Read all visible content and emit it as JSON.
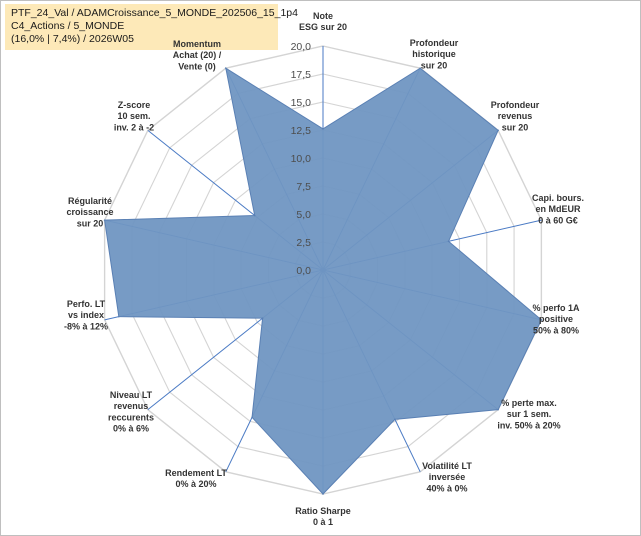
{
  "header": {
    "line1": "PTF_24_Val / ADAMCroissance_5_MONDE_202506_15_1p4",
    "line2": "C4_Actions / 5_MONDE",
    "line3": "(16,0% | 7,4%) / 2026W05"
  },
  "chart_data": {
    "type": "radar",
    "title": "",
    "rmin": 0,
    "rmax": 20,
    "ticks": [
      "0,0",
      "2,5",
      "5,0",
      "7,5",
      "10,0",
      "12,5",
      "15,0",
      "17,5",
      "20,0"
    ],
    "axes": [
      {
        "label": [
          "Note",
          "ESG sur 20"
        ],
        "value": 12.6
      },
      {
        "label": [
          "Profondeur",
          "historique",
          "sur 20"
        ],
        "value": 20
      },
      {
        "label": [
          "Profondeur",
          "revenus",
          "sur 20"
        ],
        "value": 20
      },
      {
        "label": [
          "Capi. bours.",
          "en MdEUR",
          "0 à 60 G€"
        ],
        "value": 11.5
      },
      {
        "label": [
          "% perfo 1A",
          "positive",
          "50% à 80%"
        ],
        "value": 20
      },
      {
        "label": [
          "% perte max.",
          "sur 1 sem.",
          "inv. 50% à 20%"
        ],
        "value": 20
      },
      {
        "label": [
          "Volatilité LT",
          "inversée",
          "40% à 0%"
        ],
        "value": 14.8
      },
      {
        "label": [
          "Ratio Sharpe",
          "0 à 1"
        ],
        "value": 20
      },
      {
        "label": [
          "Rendement LT",
          "0% à 20%"
        ],
        "value": 14.6
      },
      {
        "label": [
          "Niveau LT",
          "revenus",
          "reccurents",
          "0% à 6%"
        ],
        "value": 6.9
      },
      {
        "label": [
          "Perfo. LT",
          "vs index",
          "-8% à 12%"
        ],
        "value": 18.7
      },
      {
        "label": [
          "Régularité",
          "croissance",
          "sur 20"
        ],
        "value": 20
      },
      {
        "label": [
          "Z-score",
          "10 sem.",
          "inv. 2 à -2"
        ],
        "value": 7.8
      },
      {
        "label": [
          "Momentum",
          "Achat (20) /",
          "Vente (0)"
        ],
        "value": 20,
        "highlight_first_line": true
      }
    ],
    "colors": {
      "fill": "#7096c2",
      "stroke": "#5a80b4",
      "spoke": "#4a7ac4",
      "grid": "#d4d4d4",
      "header_bg": "#fde9b8",
      "highlight_text": "#a88a3a"
    }
  }
}
